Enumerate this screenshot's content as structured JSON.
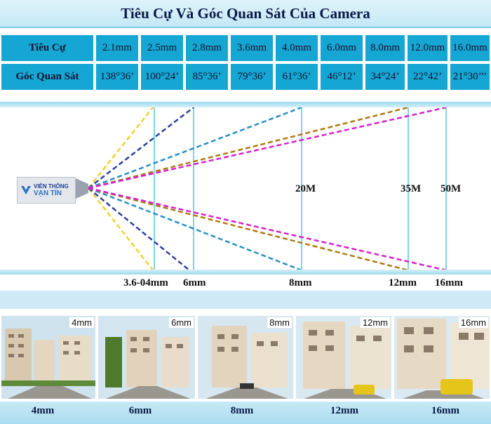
{
  "title": "Tiêu Cự Và Góc Quan Sát Của Camera",
  "table": {
    "row1_header": "Tiêu Cự",
    "row2_header": "Góc Quan Sát",
    "focal_lengths": [
      "2.1mm",
      "2.5mm",
      "2.8mm",
      "3.6mm",
      "4.0mm",
      "6.0mm",
      "8.0mm",
      "12.0mm",
      "16.0mm"
    ],
    "view_angles": [
      "138°36’",
      "100°24’",
      "85°36’",
      "79°36’",
      "61°36’",
      "46°12’",
      "34°24’",
      "22°42’",
      "21°30’’’"
    ]
  },
  "diagram": {
    "logo_line1": "VIỄN THÔNG",
    "logo_line2": "VẠN TÍN",
    "distance_labels": [
      "20M",
      "35M",
      "50M"
    ],
    "lens_labels": [
      "3.6-04mm",
      "6mm",
      "8mm",
      "12mm",
      "16mm"
    ],
    "colors": {
      "yellow": "#f2d12a",
      "blue": "#2f3f9e",
      "teal": "#2a8fc4",
      "brown": "#b07a10",
      "magenta": "#d81fd0",
      "guide": "#7fd3ea"
    }
  },
  "photos": {
    "tags": [
      "4mm",
      "6mm",
      "8mm",
      "12mm",
      "16mm"
    ],
    "captions": [
      "4mm",
      "6mm",
      "8mm",
      "12mm",
      "16mm"
    ]
  }
}
